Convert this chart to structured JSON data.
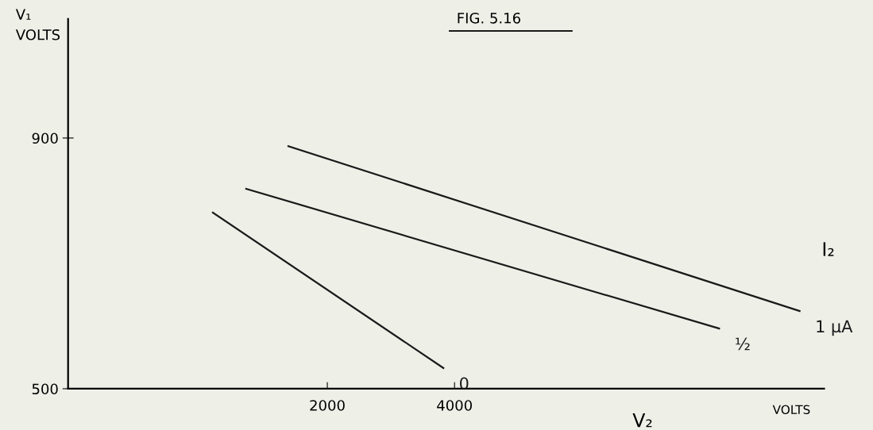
{
  "chart_data": {
    "type": "line",
    "title": "FIG. 5.16",
    "xlabel": "V₂",
    "ylabel": "V₁\nVOLTS",
    "legend_title": "I₂",
    "annotations": [
      "VOLTS"
    ],
    "xlim": [
      -2075,
      9810
    ],
    "ylim": [
      500,
      1090
    ],
    "xticks": [
      2000,
      4000
    ],
    "yticks": [
      500,
      900
    ],
    "grid": false,
    "legend": false,
    "marker": "none",
    "line_style": "solid",
    "series": [
      {
        "name": "0",
        "color": "#1a1a1a",
        "x": [
          200,
          3825
        ],
        "values": [
          781,
          533
        ]
      },
      {
        "name": "½",
        "color": "#1a1a1a",
        "x": [
          725,
          8160
        ],
        "values": [
          819,
          596
        ]
      },
      {
        "name": "1 μA",
        "color": "#1a1a1a",
        "x": [
          1388,
          9425
        ],
        "values": [
          887,
          624
        ]
      }
    ]
  }
}
